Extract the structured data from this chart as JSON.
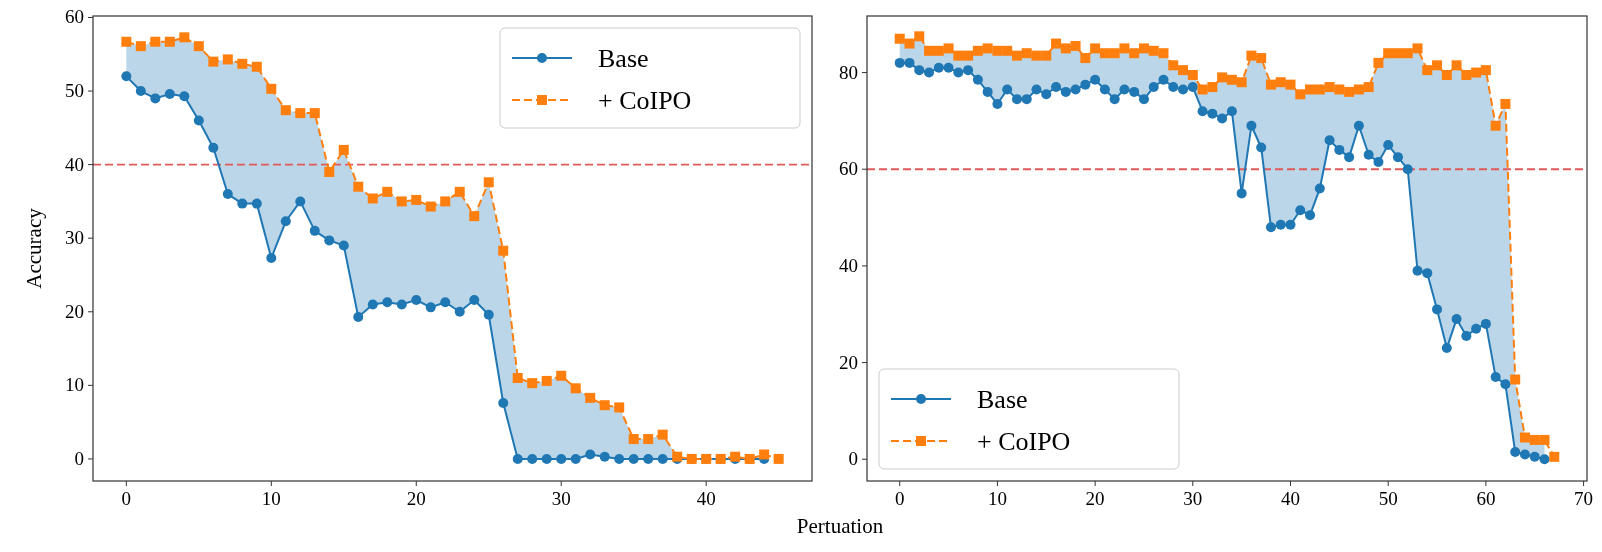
{
  "chart_data": [
    {
      "type": "line",
      "xlabel": "Pertuation",
      "ylabel": "Accuracy",
      "xlim": [
        -2.3,
        47.3
      ],
      "ylim": [
        -3,
        60.2
      ],
      "xticks": [
        0,
        10,
        20,
        30,
        40
      ],
      "yticks": [
        0,
        10,
        20,
        30,
        40,
        50,
        60
      ],
      "legend": "top right",
      "grid": false,
      "ref_lines": [
        {
          "axis": "y",
          "value": 40,
          "color": "#e05a5a",
          "line_style": "dashed"
        }
      ],
      "series": [
        {
          "name": "Base",
          "color": "#1f77b4",
          "marker": "circle",
          "line_style": "solid",
          "x": [
            0,
            1,
            2,
            3,
            4,
            5,
            6,
            7,
            8,
            9,
            10,
            11,
            12,
            13,
            14,
            15,
            16,
            17,
            18,
            19,
            20,
            21,
            22,
            23,
            24,
            25,
            26,
            27,
            28,
            29,
            30,
            31,
            32,
            33,
            34,
            35,
            36,
            37,
            38,
            39,
            40,
            41,
            42,
            43,
            44
          ],
          "values": [
            52,
            50,
            49,
            49.6,
            49.3,
            46,
            42.3,
            36,
            34.7,
            34.7,
            27.3,
            32.3,
            35,
            31,
            29.7,
            29,
            19.3,
            21,
            21.3,
            21,
            21.6,
            20.6,
            21.3,
            20,
            21.6,
            19.6,
            7.6,
            0,
            0,
            0,
            0,
            0,
            0.6,
            0.3,
            0,
            0,
            0,
            0,
            0,
            0,
            0,
            0,
            0,
            0,
            0
          ]
        },
        {
          "name": "+ CoIPO",
          "color": "#ff7f0e",
          "marker": "square",
          "line_style": "dashed",
          "x": [
            0,
            1,
            2,
            3,
            4,
            5,
            6,
            7,
            8,
            9,
            10,
            11,
            12,
            13,
            14,
            15,
            16,
            17,
            18,
            19,
            20,
            21,
            22,
            23,
            24,
            25,
            26,
            27,
            28,
            29,
            30,
            31,
            32,
            33,
            34,
            35,
            36,
            37,
            38,
            39,
            40,
            41,
            42,
            43,
            44,
            45
          ],
          "values": [
            56.7,
            56.1,
            56.7,
            56.7,
            57.3,
            56.1,
            54,
            54.3,
            53.7,
            53.3,
            50.3,
            47.4,
            47,
            47,
            39,
            42,
            37,
            35.4,
            36.3,
            35,
            35.2,
            34.3,
            35,
            36.3,
            33,
            37.6,
            28.3,
            11,
            10.3,
            10.6,
            11.3,
            9.6,
            8.3,
            7.3,
            7,
            2.7,
            2.7,
            3.3,
            0.3,
            0,
            0,
            0,
            0.3,
            0,
            0.6,
            0
          ],
          "lower": [
            52,
            50,
            49,
            49.6,
            49.3,
            46,
            42.3,
            36,
            34.7,
            34.7,
            27.3,
            32.3,
            35,
            31,
            29.7,
            29,
            19.3,
            21,
            21.3,
            21,
            21.6,
            20.6,
            21.3,
            20,
            21.6,
            19.6,
            7.6,
            0,
            0,
            0,
            0,
            0,
            0.6,
            0.3,
            0,
            0,
            0,
            0,
            0,
            0,
            0,
            0,
            0,
            0,
            0,
            null
          ],
          "upper": [
            56.7,
            56.1,
            56.7,
            56.7,
            57.3,
            56.1,
            54,
            54.3,
            53.7,
            53.3,
            50.3,
            47.4,
            47,
            47,
            39,
            42,
            37,
            35.4,
            36.3,
            35,
            35.2,
            34.3,
            35,
            36.3,
            33,
            37.6,
            28.3,
            11,
            10.3,
            10.6,
            11.3,
            9.6,
            8.3,
            7.3,
            7,
            2.7,
            2.7,
            3.3,
            0.3,
            0,
            0,
            0,
            0.3,
            0,
            0.6,
            null
          ]
        }
      ]
    },
    {
      "type": "line",
      "xlim": [
        -3.35,
        70.35
      ],
      "ylim": [
        -4.5,
        91.7
      ],
      "xticks": [
        0,
        10,
        20,
        30,
        40,
        50,
        60,
        70
      ],
      "yticks": [
        0,
        20,
        40,
        60,
        80
      ],
      "legend": "bottom left",
      "grid": false,
      "ref_lines": [
        {
          "axis": "y",
          "value": 60,
          "color": "#e05a5a",
          "line_style": "dashed"
        }
      ],
      "series": [
        {
          "name": "Base",
          "color": "#1f77b4",
          "marker": "circle",
          "line_style": "solid",
          "x": [
            0,
            1,
            2,
            3,
            4,
            5,
            6,
            7,
            8,
            9,
            10,
            11,
            12,
            13,
            14,
            15,
            16,
            17,
            18,
            19,
            20,
            21,
            22,
            23,
            24,
            25,
            26,
            27,
            28,
            29,
            30,
            31,
            32,
            33,
            34,
            35,
            36,
            37,
            38,
            39,
            40,
            41,
            42,
            43,
            44,
            45,
            46,
            47,
            48,
            49,
            50,
            51,
            52,
            53,
            54,
            55,
            56,
            57,
            58,
            59,
            60,
            61,
            62,
            63,
            64,
            65,
            66
          ],
          "values": [
            82,
            82,
            80.5,
            80,
            81,
            81,
            80,
            80.5,
            78.5,
            76,
            73.5,
            76.5,
            74.5,
            74.5,
            76.5,
            75.5,
            77,
            76,
            76.5,
            77.5,
            78.5,
            76.5,
            74.5,
            76.5,
            76,
            74.5,
            77,
            78.5,
            77,
            76.5,
            77,
            72,
            71.5,
            70.5,
            72,
            55,
            69,
            64.5,
            48,
            48.5,
            48.5,
            51.5,
            50.5,
            56,
            66,
            64,
            62.5,
            69,
            63,
            61.5,
            65,
            62.5,
            60,
            39,
            38.5,
            31,
            23,
            29,
            25.5,
            27,
            28,
            17,
            15.5,
            1.5,
            1,
            0.5,
            0
          ]
        },
        {
          "name": "+ CoIPO",
          "color": "#ff7f0e",
          "marker": "square",
          "line_style": "dashed",
          "x": [
            0,
            1,
            2,
            3,
            4,
            5,
            6,
            7,
            8,
            9,
            10,
            11,
            12,
            13,
            14,
            15,
            16,
            17,
            18,
            19,
            20,
            21,
            22,
            23,
            24,
            25,
            26,
            27,
            28,
            29,
            30,
            31,
            32,
            33,
            34,
            35,
            36,
            37,
            38,
            39,
            40,
            41,
            42,
            43,
            44,
            45,
            46,
            47,
            48,
            49,
            50,
            51,
            52,
            53,
            54,
            55,
            56,
            57,
            58,
            59,
            60,
            61,
            62,
            63,
            64,
            65,
            66,
            67
          ],
          "values": [
            87,
            86,
            87.5,
            84.5,
            84.5,
            85,
            83.5,
            83.5,
            84.5,
            85,
            84.5,
            84.5,
            83.5,
            84,
            83.5,
            83.5,
            86,
            85,
            85.5,
            83,
            85,
            84,
            84,
            85,
            84,
            85,
            84.5,
            84,
            81.5,
            80.5,
            79.5,
            76.5,
            77,
            79,
            78.5,
            78,
            83.5,
            83,
            77.5,
            78,
            77.5,
            75.5,
            76.5,
            76.5,
            77,
            76.5,
            76,
            76.5,
            77,
            82,
            84,
            84,
            84,
            85,
            80.5,
            81.5,
            79.5,
            81.5,
            79.5,
            80,
            80.5,
            69,
            73.5,
            16.5,
            4.5,
            4,
            4,
            0.5
          ],
          "lower": [
            82,
            82,
            80.5,
            80,
            81,
            81,
            80,
            80.5,
            78.5,
            76,
            73.5,
            76.5,
            74.5,
            74.5,
            76.5,
            75.5,
            77,
            76,
            76.5,
            77.5,
            78.5,
            76.5,
            74.5,
            76.5,
            76,
            74.5,
            77,
            78.5,
            77,
            76.5,
            77,
            72,
            71.5,
            70.5,
            72,
            55,
            69,
            64.5,
            48,
            48.5,
            48.5,
            51.5,
            50.5,
            56,
            66,
            64,
            62.5,
            69,
            63,
            61.5,
            65,
            62.5,
            60,
            39,
            38.5,
            31,
            23,
            29,
            25.5,
            27,
            28,
            17,
            15.5,
            1.5,
            1,
            0.5,
            0,
            null
          ],
          "upper": [
            87,
            86,
            87.5,
            84.5,
            84.5,
            85,
            83.5,
            83.5,
            84.5,
            85,
            84.5,
            84.5,
            83.5,
            84,
            83.5,
            83.5,
            86,
            85,
            85.5,
            83,
            85,
            84,
            84,
            85,
            84,
            85,
            84.5,
            84,
            81.5,
            80.5,
            79.5,
            76.5,
            77,
            79,
            78.5,
            78,
            83.5,
            83,
            77.5,
            78,
            77.5,
            75.5,
            76.5,
            76.5,
            77,
            76.5,
            76,
            76.5,
            77,
            82,
            84,
            84,
            84,
            85,
            80.5,
            81.5,
            79.5,
            81.5,
            79.5,
            80,
            80.5,
            69,
            73.5,
            16.5,
            4.5,
            4,
            4,
            null
          ]
        }
      ]
    }
  ]
}
